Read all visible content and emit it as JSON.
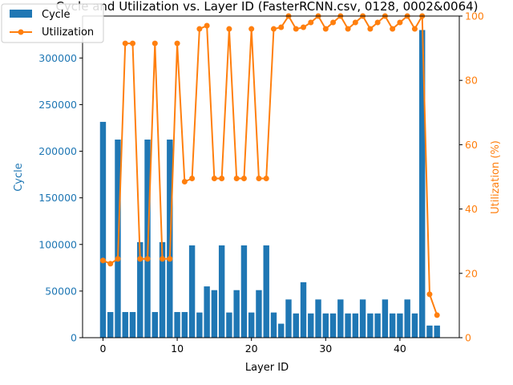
{
  "chart_data": {
    "type": "bar+line",
    "title": "Cycle and Utilization vs. Layer ID (FasterRCNN.csv, 0128, 0002&0064)",
    "xlabel": "Layer ID",
    "ylabel_left": "Cycle",
    "ylabel_right": "Utilization (%)",
    "xlim": [
      -2.75,
      48.0
    ],
    "ylim_left": [
      0,
      345000
    ],
    "ylim_right": [
      0,
      100
    ],
    "x_ticks": [
      0,
      10,
      20,
      30,
      40
    ],
    "y_left_ticks": [
      0,
      50000,
      100000,
      150000,
      200000,
      250000,
      300000
    ],
    "y_right_ticks": [
      0,
      20,
      40,
      60,
      80,
      100
    ],
    "legend_position": "top-left",
    "colors": {
      "cycle": "#1f77b4",
      "utilization": "#ff7f0e"
    },
    "series": [
      {
        "name": "Cycle",
        "type": "bar",
        "axis": "left",
        "x": [
          0,
          1,
          2,
          3,
          4,
          5,
          6,
          7,
          8,
          9,
          10,
          11,
          12,
          13,
          14,
          15,
          16,
          17,
          18,
          19,
          20,
          21,
          22,
          23,
          24,
          25,
          26,
          27,
          28,
          29,
          30,
          31,
          32,
          33,
          34,
          35,
          36,
          37,
          38,
          39,
          40,
          41,
          42,
          43,
          44,
          45
        ],
        "values": [
          231500,
          27500,
          212500,
          27500,
          27500,
          102500,
          212500,
          27500,
          102500,
          212500,
          27500,
          27500,
          99000,
          27000,
          55000,
          51000,
          99000,
          27000,
          51000,
          99000,
          27000,
          51000,
          99000,
          27000,
          15000,
          41000,
          26000,
          59500,
          26000,
          41000,
          26000,
          26000,
          41000,
          26000,
          26000,
          41000,
          26000,
          26000,
          41000,
          26000,
          26000,
          41000,
          26000,
          330000,
          13000,
          13000
        ]
      },
      {
        "name": "Utilization",
        "type": "line",
        "axis": "right",
        "x": [
          0,
          1,
          2,
          3,
          4,
          5,
          6,
          7,
          8,
          9,
          10,
          11,
          12,
          13,
          14,
          15,
          16,
          17,
          18,
          19,
          20,
          21,
          22,
          23,
          24,
          25,
          26,
          27,
          28,
          29,
          30,
          31,
          32,
          33,
          34,
          35,
          36,
          37,
          38,
          39,
          40,
          41,
          42,
          43,
          44,
          45
        ],
        "values": [
          24,
          23,
          24.5,
          91.5,
          91.5,
          24.5,
          24.5,
          91.5,
          24.5,
          24.5,
          91.5,
          48.5,
          49.5,
          96,
          97,
          49.5,
          49.5,
          96,
          49.5,
          49.5,
          96,
          49.5,
          49.5,
          96,
          96.5,
          100,
          96,
          96.5,
          98,
          100,
          96,
          98,
          100,
          96,
          98,
          100,
          96,
          98,
          100,
          96,
          98,
          100,
          96,
          100,
          13.5,
          7
        ]
      }
    ]
  }
}
